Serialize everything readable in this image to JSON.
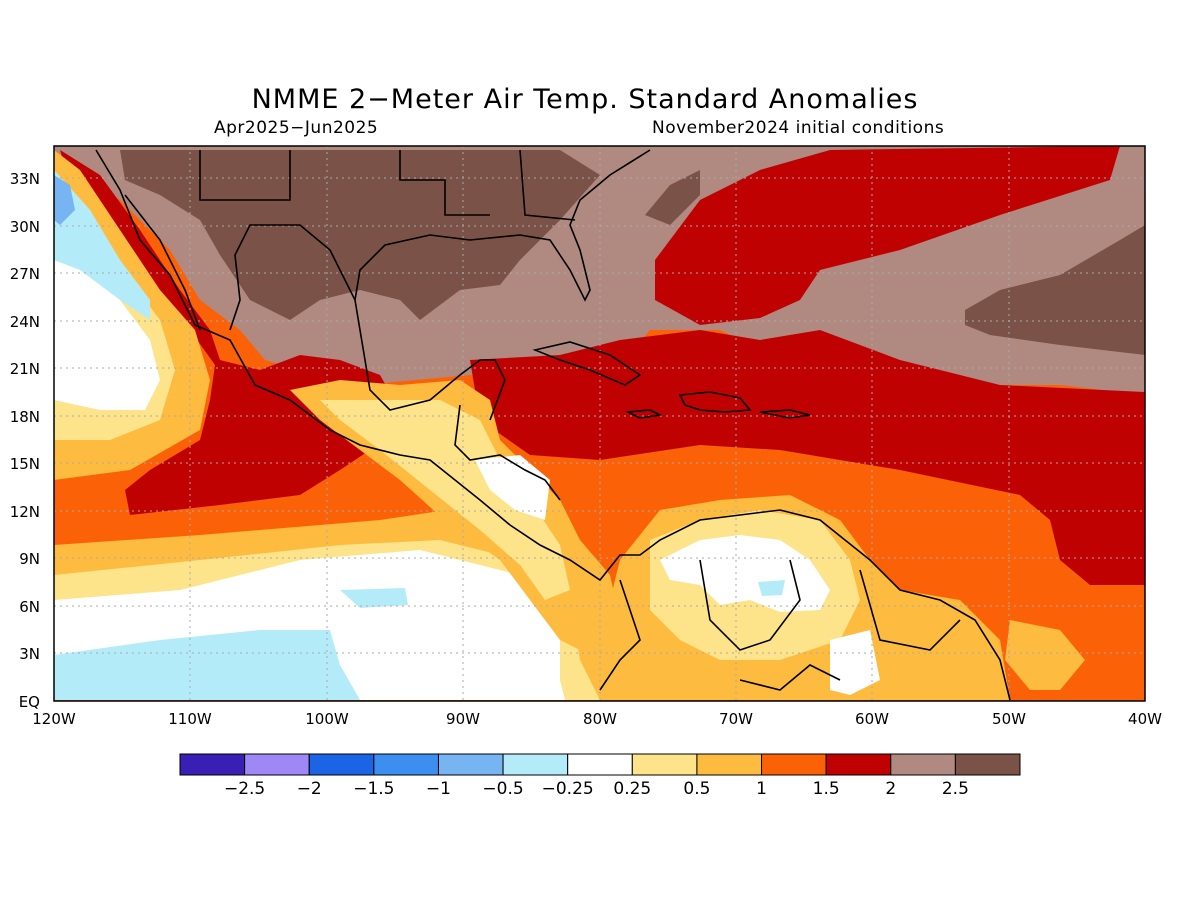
{
  "title": "NMME 2−Meter Air Temp. Standard Anomalies",
  "subtitle_left": "Apr2025−Jun2025",
  "subtitle_right": "November2024 initial conditions",
  "lat_labels": [
    "33N",
    "30N",
    "27N",
    "24N",
    "21N",
    "18N",
    "15N",
    "12N",
    "9N",
    "6N",
    "3N",
    "EQ"
  ],
  "lon_labels": [
    "120W",
    "110W",
    "100W",
    "90W",
    "80W",
    "70W",
    "60W",
    "50W",
    "40W"
  ],
  "colorbar": {
    "colors": [
      "#3a1fb5",
      "#9f87f5",
      "#1c64e6",
      "#3c8ef0",
      "#77b4f2",
      "#b3ecf8",
      "#ffffff",
      "#fde38a",
      "#fdbb40",
      "#fb6208",
      "#c00101",
      "#b08a80",
      "#7b5247"
    ],
    "labels": [
      "−2.5",
      "−2",
      "−1.5",
      "−1",
      "−0.5",
      "−0.25",
      "0.25",
      "0.5",
      "1",
      "1.5",
      "2",
      "2.5"
    ]
  },
  "legend_colors": {
    "land_outline": "#000000",
    "grid": "#aaaaaa"
  }
}
